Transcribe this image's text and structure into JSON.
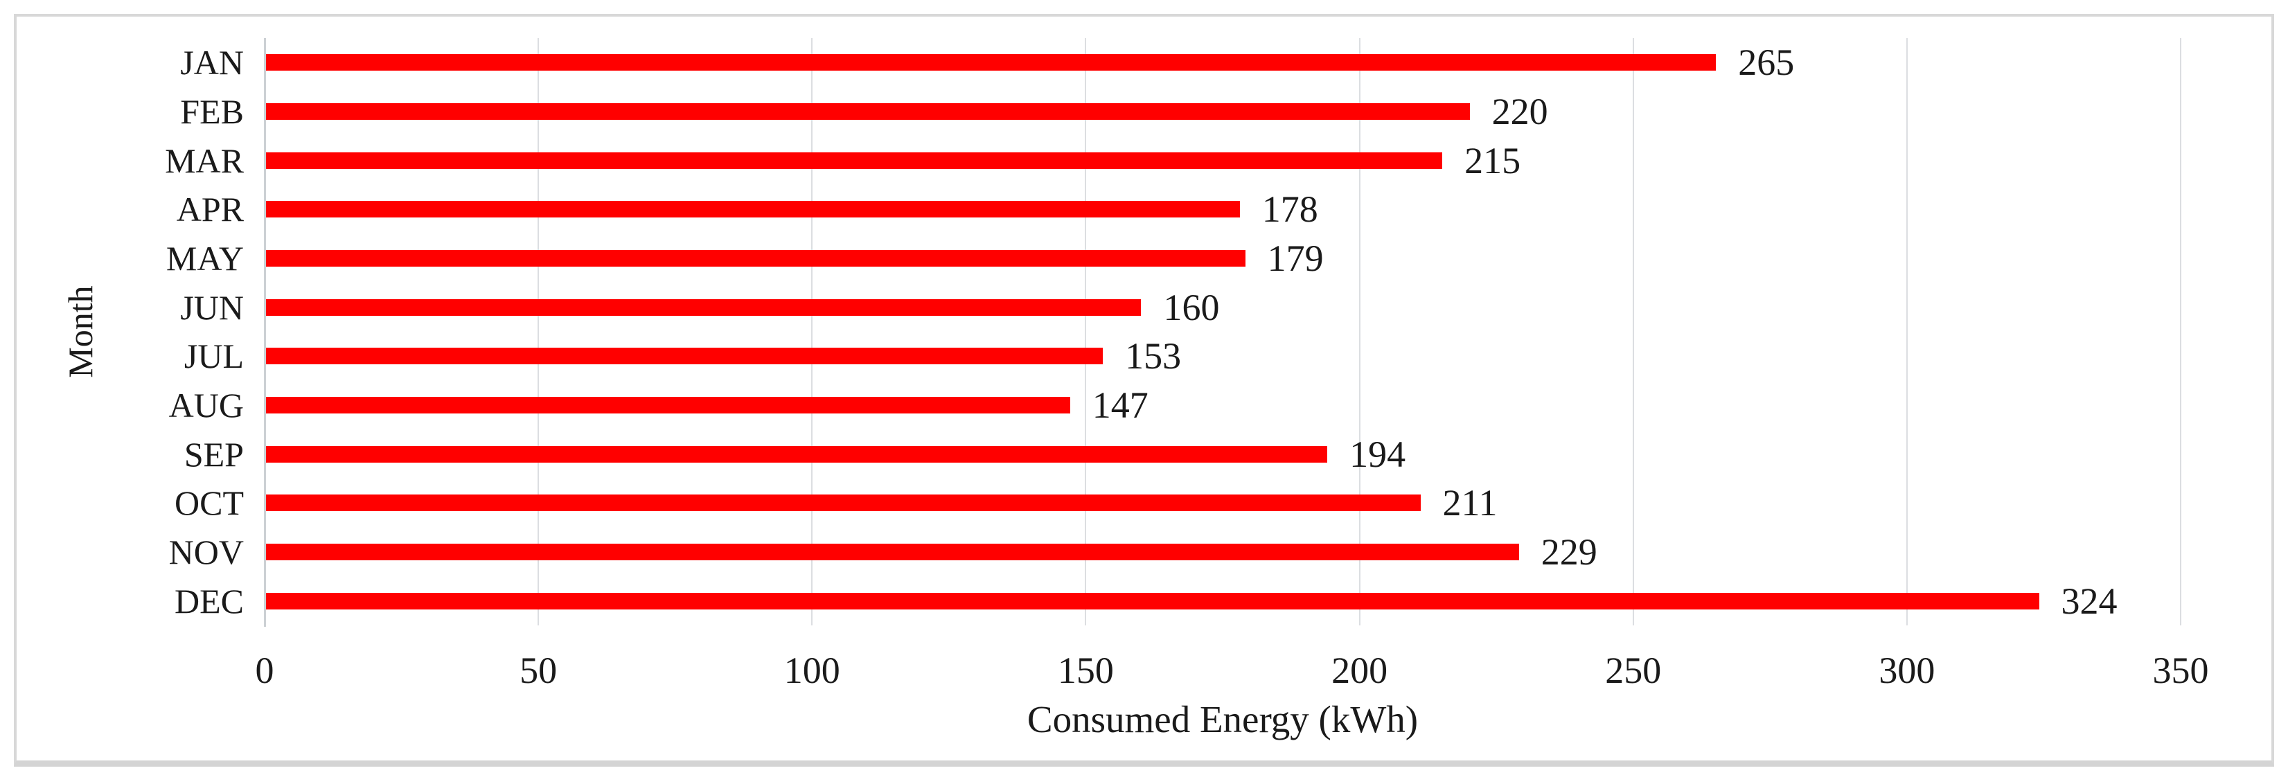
{
  "figure": {
    "xlabel": "Consumed Energy (kWh)",
    "ylabel": "Month"
  },
  "chart_data": {
    "type": "bar",
    "orientation": "horizontal",
    "title": "",
    "xlabel": "Consumed Energy (kWh)",
    "ylabel": "Month",
    "categories": [
      "JAN",
      "FEB",
      "MAR",
      "APR",
      "MAY",
      "JUN",
      "JUL",
      "AUG",
      "SEP",
      "OCT",
      "NOV",
      "DEC"
    ],
    "values": [
      265,
      220,
      215,
      178,
      179,
      160,
      153,
      147,
      194,
      211,
      229,
      324
    ],
    "data_labels": [
      "265",
      "220",
      "215",
      "178",
      "179",
      "160",
      "153",
      "147",
      "194",
      "211",
      "229",
      "324"
    ],
    "xlim": [
      0,
      350
    ],
    "xticks": [
      0,
      50,
      100,
      150,
      200,
      250,
      300,
      350
    ],
    "xtick_labels": [
      "0",
      "50",
      "100",
      "150",
      "200",
      "250",
      "300",
      "350"
    ],
    "grid": "vertical-only",
    "legend_position": "none",
    "colors": {
      "bar": "#ff0000",
      "text": "#1a1a1a",
      "gridline": "#dcdee1",
      "axis_line": "#ccd0d4",
      "frame_border": "#d8d8d8"
    }
  }
}
